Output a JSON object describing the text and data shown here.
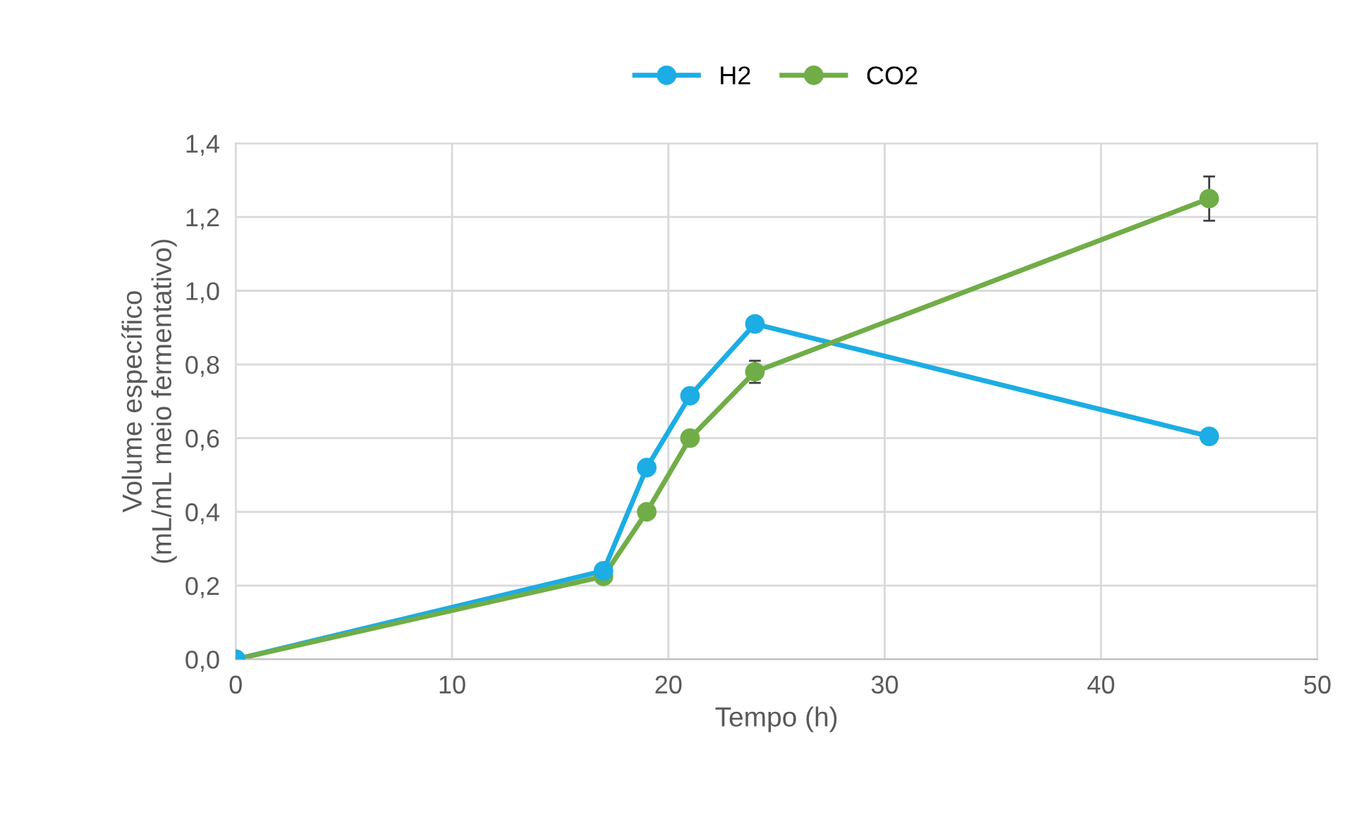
{
  "chart_data": {
    "type": "line",
    "xlabel": "Tempo (h)",
    "ylabel": "Volume específico\n(mL/mL meio fermentativo)",
    "x": [
      0,
      17,
      19,
      21,
      24,
      45
    ],
    "series": [
      {
        "name": "H2",
        "color": "#1cade4",
        "values": [
          0,
          0.24,
          0.52,
          0.715,
          0.91,
          0.605
        ]
      },
      {
        "name": "CO2",
        "color": "#70ad47",
        "values": [
          0,
          0.225,
          0.4,
          0.6,
          0.78,
          1.25
        ],
        "errors": [
          null,
          null,
          null,
          null,
          0.03,
          0.06
        ]
      }
    ],
    "xlim": [
      0,
      50
    ],
    "xticks": [
      0,
      10,
      20,
      30,
      40,
      50
    ],
    "ylim": [
      0,
      1.4
    ],
    "yticks": [
      {
        "value": 0,
        "label": "0,0"
      },
      {
        "value": 0.2,
        "label": "0,2"
      },
      {
        "value": 0.4,
        "label": "0,4"
      },
      {
        "value": 0.6,
        "label": "0,6"
      },
      {
        "value": 0.8,
        "label": "0,8"
      },
      {
        "value": 1.0,
        "label": "1,0"
      },
      {
        "value": 1.2,
        "label": "1,2"
      },
      {
        "value": 1.4,
        "label": "1,4"
      }
    ],
    "grid": true,
    "legend": "top",
    "marker": "circle",
    "line_style": "solid"
  }
}
